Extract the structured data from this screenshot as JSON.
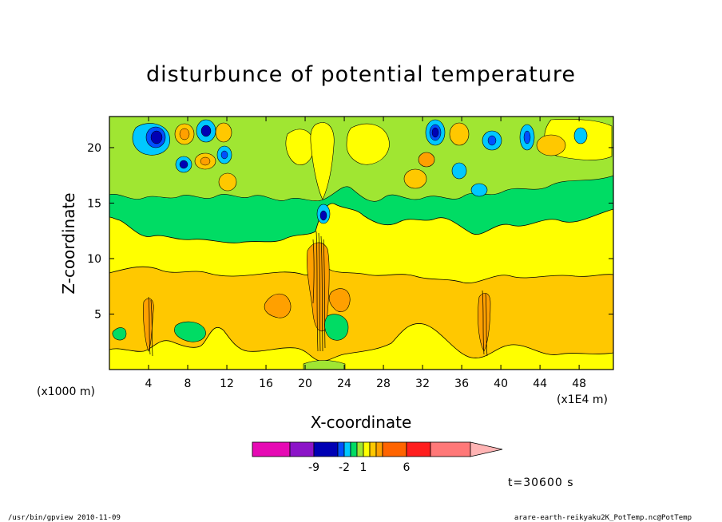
{
  "chart_data": {
    "type": "heatmap",
    "title": "disturbunce of potential temperature",
    "xlabel": "X-coordinate",
    "ylabel": "Z-coordinate",
    "x_unit_left": "(x1000 m)",
    "x_unit_right": "(x1E4 m)",
    "xlim": [
      0,
      51.5
    ],
    "ylim": [
      0,
      22.8
    ],
    "x_ticks": [
      "4",
      "8",
      "12",
      "16",
      "20",
      "24",
      "28",
      "32",
      "36",
      "40",
      "44",
      "48"
    ],
    "y_ticks": [
      "5",
      "10",
      "15",
      "20"
    ],
    "time_label": "t=30600 s",
    "colorbar": {
      "colors": [
        "#e60ab4",
        "#8c14c8",
        "#0000b4",
        "#0050ff",
        "#00c8ff",
        "#00dc64",
        "#a0e632",
        "#ffff00",
        "#ffc800",
        "#ffa000",
        "#ff6400",
        "#ff1e1e",
        "#ff7878",
        "#ffb4b4"
      ],
      "tick_labels": [
        "-9",
        "-2",
        "1",
        "6"
      ],
      "tick_values": [
        -9,
        -2,
        1,
        6
      ]
    },
    "field_description_values": {
      "background_level": 1,
      "max_positive": 6,
      "min_negative": -9
    }
  },
  "footer": {
    "left": "/usr/bin/gpview   2010-11-09",
    "right": "arare-earth-reikyaku2K_PotTemp.nc@PotTemp"
  }
}
